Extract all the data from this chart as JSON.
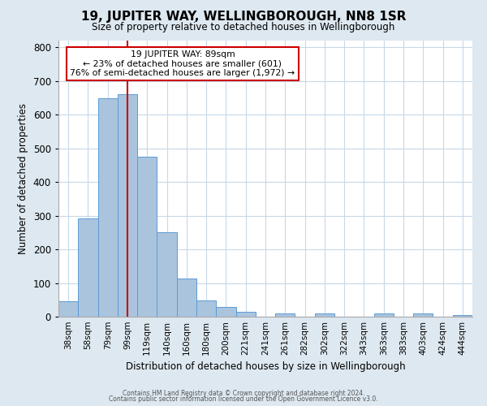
{
  "title": "19, JUPITER WAY, WELLINGBOROUGH, NN8 1SR",
  "subtitle": "Size of property relative to detached houses in Wellingborough",
  "xlabel": "Distribution of detached houses by size in Wellingborough",
  "ylabel": "Number of detached properties",
  "bin_labels": [
    "38sqm",
    "58sqm",
    "79sqm",
    "99sqm",
    "119sqm",
    "140sqm",
    "160sqm",
    "180sqm",
    "200sqm",
    "221sqm",
    "241sqm",
    "261sqm",
    "282sqm",
    "302sqm",
    "322sqm",
    "343sqm",
    "363sqm",
    "383sqm",
    "403sqm",
    "424sqm",
    "444sqm"
  ],
  "bar_heights": [
    47,
    293,
    648,
    661,
    476,
    251,
    113,
    48,
    28,
    14,
    0,
    10,
    0,
    10,
    0,
    0,
    10,
    0,
    10,
    0,
    5
  ],
  "bar_color": "#aac4de",
  "bar_edge_color": "#5b9bd5",
  "property_line_x": 3.0,
  "property_line_label": "19 JUPITER WAY: 89sqm",
  "annotation_line1": "← 23% of detached houses are smaller (601)",
  "annotation_line2": "76% of semi-detached houses are larger (1,972) →",
  "annotation_box_color": "#cc0000",
  "ylim": [
    0,
    820
  ],
  "yticks": [
    0,
    100,
    200,
    300,
    400,
    500,
    600,
    700,
    800
  ],
  "footnote1": "Contains HM Land Registry data © Crown copyright and database right 2024.",
  "footnote2": "Contains public sector information licensed under the Open Government Licence v3.0.",
  "bg_color": "#dde8f0",
  "plot_bg_color": "#ffffff",
  "grid_color": "#c8d8e8"
}
